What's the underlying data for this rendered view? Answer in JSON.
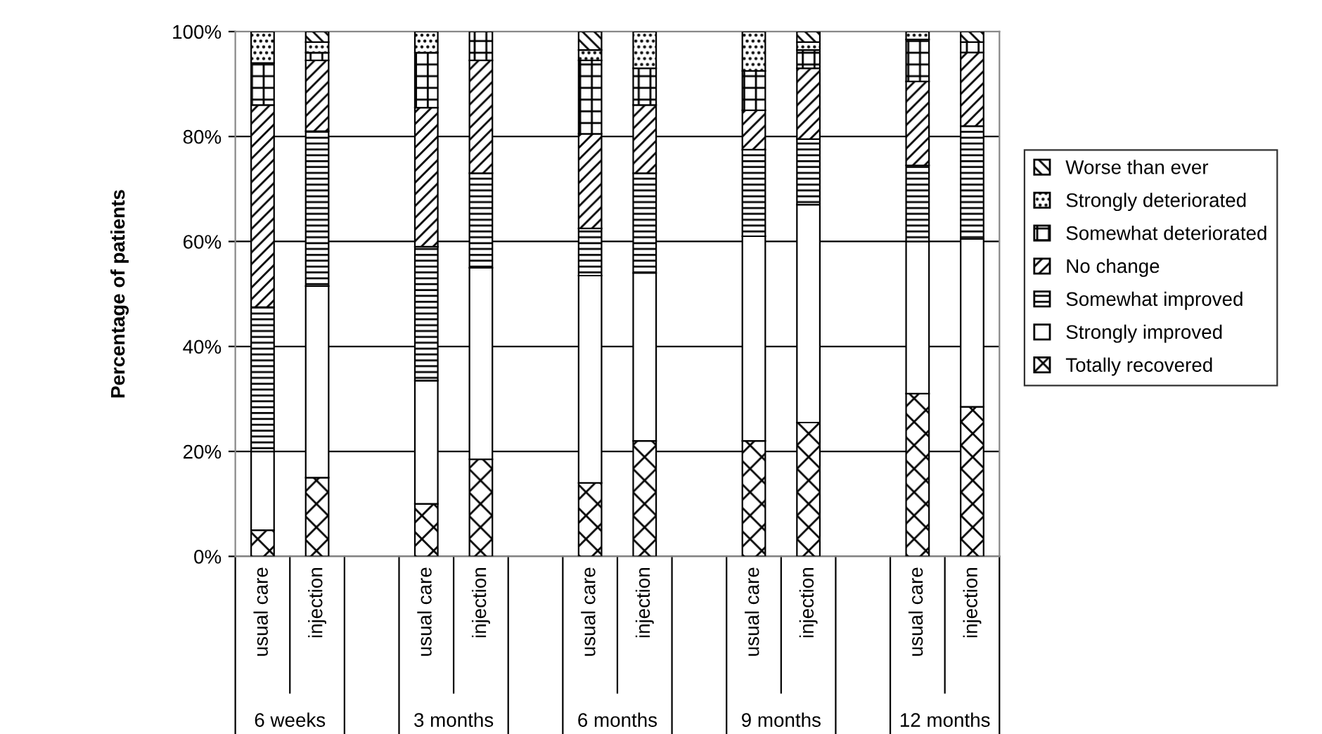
{
  "chart_data": {
    "type": "bar",
    "stacked": true,
    "ylabel": "Percentage of patients",
    "categories": [
      "usual care",
      "injection",
      null,
      "usual care",
      "injection",
      null,
      "usual care",
      "injection",
      null,
      "usual care",
      "injection",
      null,
      "usual care",
      "injection"
    ],
    "series": [
      {
        "name": "Totally recovered",
        "color": "#000000",
        "values": [
          5,
          15,
          null,
          10,
          18.5,
          null,
          14,
          22,
          null,
          22,
          25.5,
          null,
          31,
          28.5
        ]
      },
      {
        "name": "Strongly improved",
        "color": "#ffffff",
        "values": [
          15,
          36.5,
          null,
          23.5,
          36.5,
          null,
          39.5,
          32,
          null,
          39,
          41.5,
          null,
          29,
          32
        ]
      },
      {
        "name": "Somewhat improved",
        "color": "#000000",
        "values": [
          27.5,
          29.5,
          null,
          25.5,
          18,
          null,
          9,
          19,
          null,
          16.5,
          12.5,
          null,
          14.5,
          21.5
        ]
      },
      {
        "name": "No change",
        "color": "#000000",
        "values": [
          38.5,
          13.5,
          null,
          26.5,
          21.5,
          null,
          18,
          13,
          null,
          7.5,
          13.5,
          null,
          16,
          14
        ]
      },
      {
        "name": "Somewhat deteriorated",
        "color": "#000000",
        "values": [
          8,
          1.5,
          null,
          10.5,
          5.5,
          null,
          14,
          7,
          null,
          7.5,
          3.5,
          null,
          8,
          2
        ]
      },
      {
        "name": "Strongly deteriorated",
        "color": "#000000",
        "values": [
          6,
          2,
          null,
          4,
          0,
          null,
          2,
          7,
          null,
          7.5,
          1.5,
          null,
          1.5,
          0
        ]
      },
      {
        "name": "Worse than ever",
        "color": "#000000",
        "values": [
          0,
          2,
          null,
          0,
          0,
          null,
          3.5,
          0,
          null,
          0,
          2,
          null,
          0,
          2
        ]
      }
    ],
    "ylim": [
      0,
      100
    ],
    "yticks": [
      {
        "value": 0,
        "label": "0%"
      },
      {
        "value": 20,
        "label": "20%"
      },
      {
        "value": 40,
        "label": "40%"
      },
      {
        "value": 60,
        "label": "60%"
      },
      {
        "value": 80,
        "label": "80%"
      },
      {
        "value": 100,
        "label": "100%"
      }
    ],
    "grid": "y",
    "legend": "right",
    "annotations": [
      "6 weeks",
      "3 months",
      "6 months",
      "9 months",
      "12 months"
    ]
  }
}
